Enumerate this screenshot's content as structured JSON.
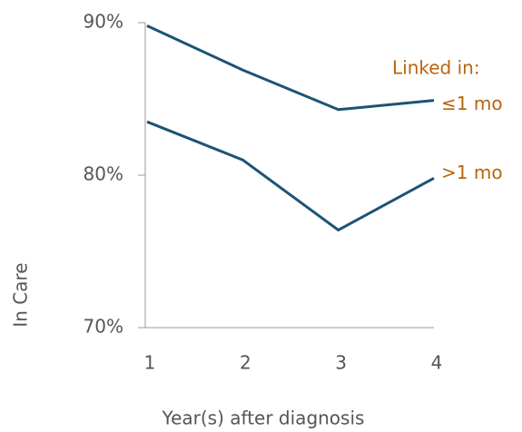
{
  "chart_data": {
    "type": "line",
    "annotation": "Linked in:",
    "x_label": "Year(s) after diagnosis",
    "y_label": "In Care",
    "x": [
      1,
      2,
      3,
      4
    ],
    "series": [
      {
        "name": "≤1 mo",
        "color": "#1d5375",
        "values": [
          89.8,
          86.9,
          84.3,
          84.9
        ]
      },
      {
        "name": ">1 mo",
        "color": "#1d5375",
        "values": [
          83.5,
          81.0,
          76.4,
          79.8
        ]
      }
    ],
    "label_color": "#b8650d",
    "xlim": [
      1,
      4
    ],
    "xticks": [
      1,
      2,
      3,
      4
    ],
    "ylim": [
      70,
      90
    ],
    "yticks": [
      {
        "value": 70,
        "label": "70%"
      },
      {
        "value": 80,
        "label": "80%"
      },
      {
        "value": 90,
        "label": "90%"
      }
    ]
  }
}
